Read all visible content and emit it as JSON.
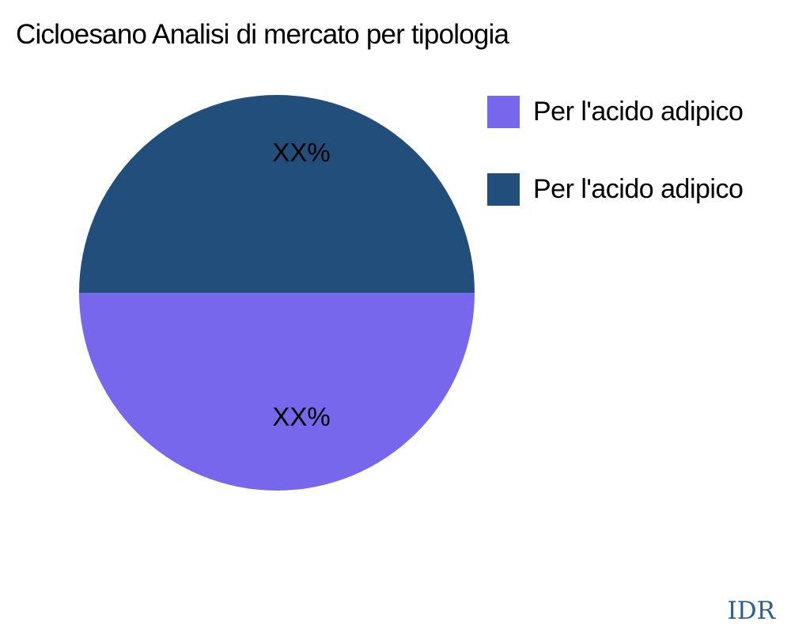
{
  "watermark": "IDR",
  "colors": {
    "background": "#FFFFFF",
    "title_text": "#000000",
    "slice_label_text": "#000000",
    "legend_text": "#000000",
    "watermark_text": "#2E5F8C",
    "slice_purple": "#7667EC",
    "slice_navy": "#224E7B"
  },
  "chart_data": {
    "type": "pie",
    "title": "Cicloesano Analisi di mercato per tipologia",
    "slices": [
      {
        "name": "Per l'acido adipico",
        "label": "XX%",
        "value": 50,
        "color": "#7667EC",
        "position": "bottom-half"
      },
      {
        "name": "Per l'acido adipico",
        "label": "XX%",
        "value": 50,
        "color": "#224E7B",
        "position": "top-half"
      }
    ],
    "start_angle_deg": 180,
    "direction": "counterclockwise",
    "legend_position": "right",
    "values_masked_as": "XX%"
  }
}
